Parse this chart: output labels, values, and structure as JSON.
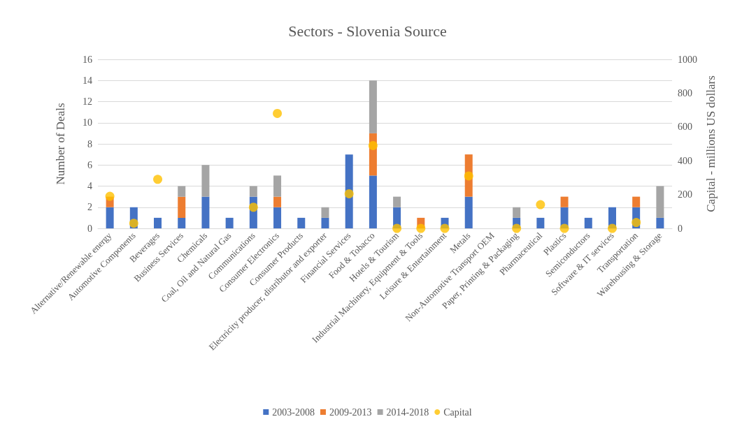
{
  "chart_data": {
    "type": "bar",
    "title": "Sectors - Slovenia Source",
    "ylabel": "Number of Deals",
    "y2label": "Capital - millions US dollars",
    "categories": [
      "Alternative/Renewable energy",
      "Automotive Components",
      "Beverages",
      "Business Services",
      "Chemicals",
      "Coal, Oil and Natural Gas",
      "Communications",
      "Consumer Electronics",
      "Consumer Products",
      "Electricity producer, distributor and exporter",
      "Financial Services",
      "Food & Tobacco",
      "Hotels & Tourism",
      "Industrial Machinery, Equipment & Tools",
      "Leisure & Entertainment",
      "Metals",
      "Non-Automotive Transport OEM",
      "Paper, Printing & Packaging",
      "Pharmaceutical",
      "Plastics",
      "Semiconductors",
      "Software & IT services",
      "Transportation",
      "Warehousing & Storage"
    ],
    "stacked": true,
    "series": [
      {
        "name": "2003-2008",
        "color": "#4472c4",
        "values": [
          2,
          2,
          1,
          1,
          3,
          1,
          3,
          2,
          1,
          1,
          7,
          5,
          2,
          0,
          1,
          3,
          0,
          1,
          1,
          2,
          1,
          2,
          2,
          1
        ]
      },
      {
        "name": "2009-2013",
        "color": "#ed7d31",
        "values": [
          1,
          0,
          0,
          2,
          0,
          0,
          0,
          1,
          0,
          0,
          0,
          4,
          0,
          1,
          0,
          4,
          0,
          0,
          0,
          1,
          0,
          0,
          1,
          0
        ]
      },
      {
        "name": "2014-2018",
        "color": "#a5a5a5",
        "values": [
          0,
          0,
          0,
          1,
          3,
          0,
          1,
          2,
          0,
          1,
          0,
          5,
          1,
          0,
          0,
          0,
          0,
          1,
          0,
          0,
          0,
          0,
          0,
          3
        ]
      },
      {
        "name": "Capital",
        "type": "scatter",
        "axis": "y2",
        "color": "#ffc000",
        "marker": "circle",
        "values": [
          190,
          30,
          290,
          null,
          null,
          null,
          125,
          680,
          null,
          null,
          205,
          490,
          0,
          0,
          0,
          310,
          null,
          0,
          140,
          0,
          null,
          0,
          35,
          null
        ]
      }
    ],
    "ylim": [
      0,
      16
    ],
    "yticks": [
      0,
      2,
      4,
      6,
      8,
      10,
      12,
      14,
      16
    ],
    "y2lim": [
      0,
      1000
    ],
    "y2ticks": [
      0,
      200,
      400,
      600,
      800,
      1000
    ],
    "grid": "y",
    "legend": "bottom"
  }
}
